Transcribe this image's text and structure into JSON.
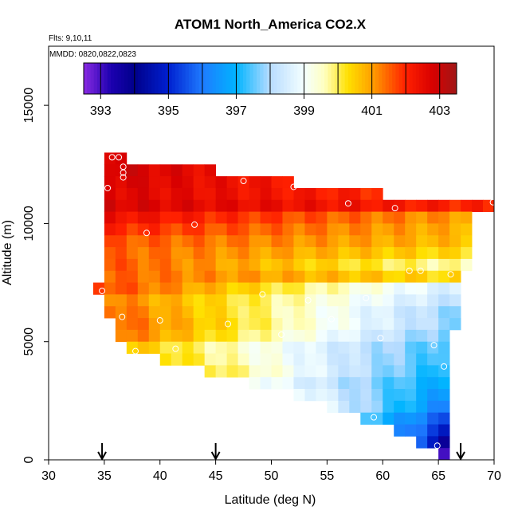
{
  "chart_data": {
    "type": "heatmap",
    "title": "ATOM1 North_America CO2.X",
    "subtitle_flights": "Flts: 9,10,11",
    "subtitle_dates": "MMDD: 0820,0822,0823",
    "xlabel": "Latitude (deg N)",
    "ylabel": "Altitude (m)",
    "xlim": [
      30,
      70
    ],
    "ylim": [
      0,
      17500
    ],
    "x_ticks": [
      "30",
      "35",
      "40",
      "45",
      "50",
      "55",
      "60",
      "65",
      "70"
    ],
    "y_ticks": [
      "0",
      "5000",
      "10000",
      "15000"
    ],
    "colorbar": {
      "min": 392.5,
      "max": 403.5,
      "tick_labels": [
        "393",
        "395",
        "397",
        "399",
        "401",
        "403"
      ],
      "tick_values": [
        393,
        395,
        397,
        399,
        401,
        403
      ],
      "stops": [
        {
          "v": 392.5,
          "c": "#8a2be2"
        },
        {
          "v": 393.3,
          "c": "#1c00b0"
        },
        {
          "v": 394.0,
          "c": "#00008b"
        },
        {
          "v": 395.0,
          "c": "#0020d0"
        },
        {
          "v": 396.0,
          "c": "#1e7bff"
        },
        {
          "v": 397.0,
          "c": "#00b4ff"
        },
        {
          "v": 398.0,
          "c": "#b8dcff"
        },
        {
          "v": 399.0,
          "c": "#f4ffff"
        },
        {
          "v": 399.6,
          "c": "#ffffc0"
        },
        {
          "v": 400.3,
          "c": "#ffe000"
        },
        {
          "v": 401.0,
          "c": "#ffa000"
        },
        {
          "v": 402.0,
          "c": "#ff2000"
        },
        {
          "v": 402.8,
          "c": "#d80000"
        },
        {
          "v": 403.5,
          "c": "#a01818"
        }
      ]
    },
    "cell_size": {
      "lat": 1.0,
      "alt": 500
    },
    "rows": [
      {
        "alt": 12750,
        "lat_start": 35,
        "lat_end": 37,
        "v_start": 402.9,
        "v_end": 402.8
      },
      {
        "alt": 12250,
        "lat_start": 35,
        "lat_end": 45,
        "v_start": 402.9,
        "v_end": 402.5
      },
      {
        "alt": 11750,
        "lat_start": 35,
        "lat_end": 52,
        "v_start": 402.8,
        "v_end": 402.2
      },
      {
        "alt": 11250,
        "lat_start": 35,
        "lat_end": 60,
        "v_start": 402.7,
        "v_end": 402.0
      },
      {
        "alt": 10750,
        "lat_start": 35,
        "lat_end": 70,
        "v_start": 402.8,
        "v_end": 402.0
      },
      {
        "alt": 10250,
        "lat_start": 35,
        "lat_end": 68,
        "v_start": 402.4,
        "v_end": 401.0
      },
      {
        "alt": 9750,
        "lat_start": 35,
        "lat_end": 68,
        "v_start": 402.0,
        "v_end": 400.8
      },
      {
        "alt": 9250,
        "lat_start": 35,
        "lat_end": 68,
        "v_start": 401.6,
        "v_end": 400.7
      },
      {
        "alt": 8750,
        "lat_start": 35,
        "lat_end": 68,
        "v_start": 401.5,
        "v_end": 400.3
      },
      {
        "alt": 8250,
        "lat_start": 35,
        "lat_end": 68,
        "v_start": 401.6,
        "v_end": 399.6
      },
      {
        "alt": 7750,
        "lat_start": 35,
        "lat_end": 67,
        "v_start": 401.5,
        "v_end": 400.3
      },
      {
        "alt": 7250,
        "lat_start": 34,
        "lat_end": 67,
        "v_start": 401.8,
        "v_end": 398.5
      },
      {
        "alt": 6750,
        "lat_start": 35,
        "lat_end": 67,
        "v_start": 401.3,
        "v_end": 398.2
      },
      {
        "alt": 6250,
        "lat_start": 35,
        "lat_end": 67,
        "v_start": 401.5,
        "v_end": 397.8
      },
      {
        "alt": 5750,
        "lat_start": 36,
        "lat_end": 67,
        "v_start": 401.5,
        "v_end": 397.8
      },
      {
        "alt": 5250,
        "lat_start": 36,
        "lat_end": 66,
        "v_start": 401.4,
        "v_end": 397.6
      },
      {
        "alt": 4750,
        "lat_start": 37,
        "lat_end": 66,
        "v_start": 400.6,
        "v_end": 397.3
      },
      {
        "alt": 4250,
        "lat_start": 40,
        "lat_end": 66,
        "v_start": 400.4,
        "v_end": 397.2
      },
      {
        "alt": 3750,
        "lat_start": 44,
        "lat_end": 66,
        "v_start": 400.2,
        "v_end": 397.0
      },
      {
        "alt": 3250,
        "lat_start": 48,
        "lat_end": 66,
        "v_start": 399.2,
        "v_end": 396.8
      },
      {
        "alt": 2750,
        "lat_start": 52,
        "lat_end": 66,
        "v_start": 399.0,
        "v_end": 396.5
      },
      {
        "alt": 2250,
        "lat_start": 55,
        "lat_end": 66,
        "v_start": 398.6,
        "v_end": 396.2
      },
      {
        "alt": 1750,
        "lat_start": 58,
        "lat_end": 66,
        "v_start": 397.4,
        "v_end": 395.6
      },
      {
        "alt": 1250,
        "lat_start": 61,
        "lat_end": 66,
        "v_start": 396.4,
        "v_end": 395.0
      },
      {
        "alt": 750,
        "lat_start": 63,
        "lat_end": 66,
        "v_start": 395.5,
        "v_end": 394.0
      },
      {
        "alt": 250,
        "lat_start": 65,
        "lat_end": 66,
        "v_start": 393.2,
        "v_end": 393.0
      }
    ],
    "profile_points": [
      {
        "lat": 35.7,
        "alt": 12800
      },
      {
        "lat": 36.3,
        "alt": 12800
      },
      {
        "lat": 36.7,
        "alt": 12400
      },
      {
        "lat": 36.7,
        "alt": 12150
      },
      {
        "lat": 36.7,
        "alt": 11950
      },
      {
        "lat": 35.3,
        "alt": 11500
      },
      {
        "lat": 47.5,
        "alt": 11800
      },
      {
        "lat": 52.0,
        "alt": 11550
      },
      {
        "lat": 56.9,
        "alt": 10850
      },
      {
        "lat": 61.1,
        "alt": 10650
      },
      {
        "lat": 69.9,
        "alt": 10900
      },
      {
        "lat": 43.1,
        "alt": 9950
      },
      {
        "lat": 38.8,
        "alt": 9600
      },
      {
        "lat": 62.4,
        "alt": 8000
      },
      {
        "lat": 63.4,
        "alt": 8000
      },
      {
        "lat": 66.1,
        "alt": 7850
      },
      {
        "lat": 34.8,
        "alt": 7150
      },
      {
        "lat": 49.2,
        "alt": 7000
      },
      {
        "lat": 53.3,
        "alt": 6750
      },
      {
        "lat": 58.5,
        "alt": 6850
      },
      {
        "lat": 36.6,
        "alt": 6050
      },
      {
        "lat": 40.0,
        "alt": 5900
      },
      {
        "lat": 46.1,
        "alt": 5750
      },
      {
        "lat": 55.4,
        "alt": 5950
      },
      {
        "lat": 50.9,
        "alt": 5300
      },
      {
        "lat": 59.8,
        "alt": 5150
      },
      {
        "lat": 41.4,
        "alt": 4700
      },
      {
        "lat": 37.8,
        "alt": 4600
      },
      {
        "lat": 64.6,
        "alt": 4850
      },
      {
        "lat": 65.5,
        "alt": 3950
      },
      {
        "lat": 59.2,
        "alt": 1800
      },
      {
        "lat": 64.9,
        "alt": 600
      }
    ],
    "arrows_lat": [
      34.8,
      45.0,
      67.0
    ]
  }
}
